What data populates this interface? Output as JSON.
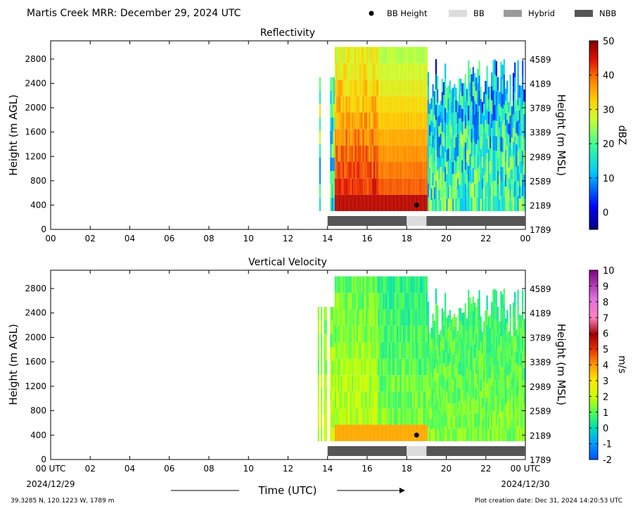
{
  "header": {
    "title": "Martis Creek MRR:  December 29, 2024 UTC",
    "legend": [
      {
        "label": "BB Height",
        "kind": "dot",
        "color": "#000000"
      },
      {
        "label": "BB",
        "kind": "swatch",
        "color": "#dcdcdc"
      },
      {
        "label": "Hybrid",
        "kind": "swatch",
        "color": "#9a9a9a"
      },
      {
        "label": "NBB",
        "kind": "swatch",
        "color": "#555555"
      }
    ]
  },
  "footer": {
    "location": "39.3285 N, 120.1223 W, 1789 m",
    "creation": "Plot creation date: Dec 31, 2024 14:20:53 UTC",
    "date_left": "2024/12/29",
    "date_right": "2024/12/30",
    "time_label": "Time (UTC)"
  },
  "chart_data": [
    {
      "type": "heatmap",
      "title": "Reflectivity",
      "ylabel": "Height (m AGL)",
      "ylabel_right": "Height (m MSL)",
      "xlim": [
        0,
        24
      ],
      "ylim": [
        0,
        3100
      ],
      "x_ticks": [
        "00",
        "02",
        "04",
        "06",
        "08",
        "10",
        "12",
        "14",
        "16",
        "18",
        "20",
        "22",
        "00"
      ],
      "y_ticks": [
        0,
        400,
        800,
        1200,
        1600,
        2000,
        2400,
        2800
      ],
      "y_ticks_right": [
        "1789",
        "2189",
        "2589",
        "2989",
        "3389",
        "3789",
        "4189",
        "4589"
      ],
      "colorbar": {
        "label": "dBZ",
        "min": -5,
        "max": 50,
        "ticks": [
          0,
          10,
          20,
          30,
          40,
          50
        ]
      },
      "data_extent": {
        "start_hour": 13.5,
        "end_hour": 24.0,
        "bottom_m": 300,
        "top_m": 3000
      },
      "bright_band": {
        "time_hour": 18.5,
        "height_m": 400
      },
      "classification": [
        {
          "class": "NBB",
          "start_hour": 14.0,
          "end_hour": 18.0
        },
        {
          "class": "BB",
          "start_hour": 18.0,
          "end_hour": 19.0
        },
        {
          "class": "NBB",
          "start_hour": 19.0,
          "end_hour": 24.0
        }
      ]
    },
    {
      "type": "heatmap",
      "title": "Vertical Velocity",
      "ylabel": "Height (m AGL)",
      "ylabel_right": "Height (m MSL)",
      "xlim": [
        0,
        24
      ],
      "ylim": [
        0,
        3100
      ],
      "x_ticks": [
        "00 UTC",
        "02",
        "04",
        "06",
        "08",
        "10",
        "12",
        "14",
        "16",
        "18",
        "20",
        "22",
        "00 UTC"
      ],
      "y_ticks": [
        0,
        400,
        800,
        1200,
        1600,
        2000,
        2400,
        2800
      ],
      "y_ticks_right": [
        "1789",
        "2189",
        "2589",
        "2989",
        "3389",
        "3789",
        "4189",
        "4589"
      ],
      "colorbar": {
        "label": "m/s",
        "min": -2,
        "max": 10,
        "ticks": [
          -2,
          -1,
          0,
          1,
          2,
          3,
          4,
          5,
          6,
          7,
          8,
          9,
          10
        ]
      },
      "data_extent": {
        "start_hour": 13.5,
        "end_hour": 24.0,
        "bottom_m": 300,
        "top_m": 3000
      },
      "bright_band": {
        "time_hour": 18.5,
        "height_m": 400
      },
      "classification": [
        {
          "class": "NBB",
          "start_hour": 14.0,
          "end_hour": 18.0
        },
        {
          "class": "BB",
          "start_hour": 18.0,
          "end_hour": 19.0
        },
        {
          "class": "NBB",
          "start_hour": 19.0,
          "end_hour": 24.0
        }
      ]
    }
  ]
}
